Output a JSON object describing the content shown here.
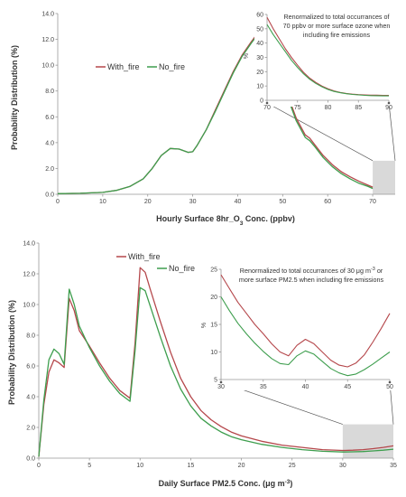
{
  "colors": {
    "with_fire": "#b5474b",
    "no_fire": "#3e9e4e",
    "shade": "#d9d9d9",
    "axis": "#999999"
  },
  "chart_data": [
    {
      "type": "line",
      "xlabel_main": "Hourly Surface 8hr_O",
      "xlabel_sub": "3",
      "xlabel_tail": " Conc. (ppbv)",
      "ylabel": "Probability Distribution (%)",
      "xlim": [
        0,
        75
      ],
      "ylim": [
        0,
        14
      ],
      "xticks": [
        "0",
        "10",
        "20",
        "30",
        "40",
        "50",
        "60",
        "70"
      ],
      "yticks": [
        "0.0",
        "2.0",
        "4.0",
        "6.0",
        "8.0",
        "10.0",
        "12.0",
        "14.0"
      ],
      "legend": [
        "With_fire",
        "No_fire"
      ],
      "shaded_region": [
        70,
        75
      ],
      "series": [
        {
          "name": "With_fire",
          "points": [
            [
              0,
              0.05
            ],
            [
              5,
              0.08
            ],
            [
              10,
              0.15
            ],
            [
              13,
              0.3
            ],
            [
              16,
              0.6
            ],
            [
              19,
              1.2
            ],
            [
              21,
              2.0
            ],
            [
              23,
              3.0
            ],
            [
              25,
              3.55
            ],
            [
              27,
              3.5
            ],
            [
              29,
              3.25
            ],
            [
              30,
              3.3
            ],
            [
              31,
              3.8
            ],
            [
              33,
              5.0
            ],
            [
              35,
              6.5
            ],
            [
              37,
              8.0
            ],
            [
              39,
              9.5
            ],
            [
              41,
              10.8
            ],
            [
              43,
              11.8
            ],
            [
              44.5,
              12.5
            ],
            [
              45.5,
              12.75
            ],
            [
              46.5,
              12.55
            ],
            [
              47.5,
              11.9
            ],
            [
              49,
              10.2
            ],
            [
              51,
              7.8
            ],
            [
              53,
              5.9
            ],
            [
              55,
              4.6
            ],
            [
              56,
              4.35
            ],
            [
              57,
              3.9
            ],
            [
              59,
              3.0
            ],
            [
              61,
              2.3
            ],
            [
              63,
              1.75
            ],
            [
              65,
              1.35
            ],
            [
              67,
              1.0
            ],
            [
              69,
              0.7
            ],
            [
              70,
              0.55
            ]
          ]
        },
        {
          "name": "No_fire",
          "points": [
            [
              0,
              0.05
            ],
            [
              5,
              0.08
            ],
            [
              10,
              0.15
            ],
            [
              13,
              0.3
            ],
            [
              16,
              0.6
            ],
            [
              19,
              1.2
            ],
            [
              21,
              2.0
            ],
            [
              23,
              3.0
            ],
            [
              25,
              3.55
            ],
            [
              27,
              3.5
            ],
            [
              29,
              3.25
            ],
            [
              30,
              3.3
            ],
            [
              31,
              3.8
            ],
            [
              33,
              5.0
            ],
            [
              35,
              6.4
            ],
            [
              37,
              7.9
            ],
            [
              39,
              9.4
            ],
            [
              41,
              10.7
            ],
            [
              43,
              11.7
            ],
            [
              44.5,
              12.4
            ],
            [
              45.5,
              12.65
            ],
            [
              46.5,
              12.4
            ],
            [
              47.5,
              11.75
            ],
            [
              49,
              10.0
            ],
            [
              51,
              7.6
            ],
            [
              53,
              5.7
            ],
            [
              55,
              4.4
            ],
            [
              56,
              4.15
            ],
            [
              57,
              3.75
            ],
            [
              59,
              2.85
            ],
            [
              61,
              2.15
            ],
            [
              63,
              1.6
            ],
            [
              65,
              1.2
            ],
            [
              67,
              0.85
            ],
            [
              69,
              0.6
            ],
            [
              70,
              0.45
            ]
          ]
        }
      ],
      "inset": {
        "note_lines": [
          "Renormalized to total occurrances of",
          "70 ppbv or more surface ozone when",
          "including fire emissions"
        ],
        "xlim": [
          70,
          90
        ],
        "ylim": [
          0,
          60
        ],
        "xticks": [
          "70",
          "75",
          "80",
          "85",
          "90"
        ],
        "yticks": [
          "0",
          "10",
          "20",
          "30",
          "40",
          "50",
          "60"
        ],
        "ylabel": "%",
        "series": [
          {
            "name": "With_fire",
            "points": [
              [
                70,
                58
              ],
              [
                71,
                50
              ],
              [
                72,
                43
              ],
              [
                73,
                36
              ],
              [
                74,
                30
              ],
              [
                75,
                24.5
              ],
              [
                76,
                19.5
              ],
              [
                77,
                15.5
              ],
              [
                78,
                12.5
              ],
              [
                79,
                10
              ],
              [
                80,
                8
              ],
              [
                81,
                6.5
              ],
              [
                82,
                5.5
              ],
              [
                83,
                4.8
              ],
              [
                84,
                4.3
              ],
              [
                85,
                4
              ],
              [
                86,
                3.8
              ],
              [
                87,
                3.6
              ],
              [
                88,
                3.6
              ],
              [
                89,
                3.5
              ],
              [
                90,
                3.5
              ]
            ]
          },
          {
            "name": "No_fire",
            "points": [
              [
                70,
                53
              ],
              [
                71,
                46
              ],
              [
                72,
                40
              ],
              [
                73,
                34
              ],
              [
                74,
                28
              ],
              [
                75,
                23
              ],
              [
                76,
                18.5
              ],
              [
                77,
                14.7
              ],
              [
                78,
                11.8
              ],
              [
                79,
                9.5
              ],
              [
                80,
                7.6
              ],
              [
                81,
                6.2
              ],
              [
                82,
                5.3
              ],
              [
                83,
                4.6
              ],
              [
                84,
                4.1
              ],
              [
                85,
                3.8
              ],
              [
                86,
                3.5
              ],
              [
                87,
                3.3
              ],
              [
                88,
                3.2
              ],
              [
                89,
                3.1
              ],
              [
                90,
                3.1
              ]
            ]
          }
        ]
      }
    },
    {
      "type": "line",
      "xlabel_main": "Daily Surface PM2.5 Conc. (μg m",
      "xlabel_sup": "-3",
      "xlabel_tail": ")",
      "ylabel": "Probability Distribution (%)",
      "xlim": [
        0,
        35
      ],
      "ylim": [
        0,
        14
      ],
      "xticks": [
        "0",
        "5",
        "10",
        "15",
        "20",
        "25",
        "30",
        "35"
      ],
      "yticks": [
        "0.0",
        "2.0",
        "4.0",
        "6.0",
        "8.0",
        "10.0",
        "12.0",
        "14.0"
      ],
      "legend": [
        "With_fire",
        "No_fire"
      ],
      "shaded_region": [
        30,
        35
      ],
      "series": [
        {
          "name": "With_fire",
          "points": [
            [
              0,
              0.1
            ],
            [
              0.5,
              3.5
            ],
            [
              1,
              5.6
            ],
            [
              1.5,
              6.4
            ],
            [
              2,
              6.2
            ],
            [
              2.5,
              5.9
            ],
            [
              3,
              10.4
            ],
            [
              3.5,
              9.6
            ],
            [
              4,
              8.3
            ],
            [
              5,
              7.3
            ],
            [
              6,
              6.2
            ],
            [
              7,
              5.2
            ],
            [
              8,
              4.4
            ],
            [
              9,
              3.9
            ],
            [
              9.5,
              7.5
            ],
            [
              10,
              12.4
            ],
            [
              10.5,
              12.1
            ],
            [
              11,
              11.0
            ],
            [
              12,
              8.9
            ],
            [
              13,
              6.9
            ],
            [
              14,
              5.2
            ],
            [
              15,
              4.0
            ],
            [
              16,
              3.1
            ],
            [
              17,
              2.5
            ],
            [
              18,
              2.05
            ],
            [
              19,
              1.7
            ],
            [
              20,
              1.45
            ],
            [
              22,
              1.1
            ],
            [
              24,
              0.85
            ],
            [
              26,
              0.7
            ],
            [
              28,
              0.55
            ],
            [
              30,
              0.5
            ],
            [
              31,
              0.52
            ],
            [
              32,
              0.55
            ],
            [
              33,
              0.62
            ],
            [
              34,
              0.7
            ],
            [
              35,
              0.8
            ]
          ]
        },
        {
          "name": "No_fire",
          "points": [
            [
              0,
              0.1
            ],
            [
              0.5,
              3.8
            ],
            [
              1,
              6.4
            ],
            [
              1.5,
              7.1
            ],
            [
              2,
              6.8
            ],
            [
              2.5,
              6.1
            ],
            [
              3,
              11.0
            ],
            [
              3.5,
              10.0
            ],
            [
              4,
              8.6
            ],
            [
              5,
              7.2
            ],
            [
              6,
              6.0
            ],
            [
              7,
              5.0
            ],
            [
              8,
              4.2
            ],
            [
              9,
              3.7
            ],
            [
              9.5,
              7.0
            ],
            [
              10,
              11.1
            ],
            [
              10.5,
              10.9
            ],
            [
              11,
              9.9
            ],
            [
              12,
              7.9
            ],
            [
              13,
              6.0
            ],
            [
              14,
              4.5
            ],
            [
              15,
              3.4
            ],
            [
              16,
              2.6
            ],
            [
              17,
              2.1
            ],
            [
              18,
              1.7
            ],
            [
              19,
              1.4
            ],
            [
              20,
              1.2
            ],
            [
              22,
              0.9
            ],
            [
              24,
              0.7
            ],
            [
              26,
              0.55
            ],
            [
              28,
              0.45
            ],
            [
              30,
              0.4
            ],
            [
              31,
              0.41
            ],
            [
              32,
              0.43
            ],
            [
              33,
              0.47
            ],
            [
              34,
              0.52
            ],
            [
              35,
              0.58
            ]
          ]
        }
      ],
      "inset": {
        "note_line1_pre": "Renormalized to total occurrances of 30 μg m",
        "note_line1_sup": "-3",
        "note_line1_post": " or",
        "note_line2": "more surface PM2.5 when including fire emissions",
        "xlim": [
          30,
          50
        ],
        "ylim": [
          5,
          25
        ],
        "xticks": [
          "30",
          "35",
          "40",
          "45",
          "50"
        ],
        "yticks": [
          "5",
          "10",
          "15",
          "20",
          "25"
        ],
        "ylabel": "%",
        "series": [
          {
            "name": "With_fire",
            "points": [
              [
                30,
                24
              ],
              [
                31,
                21.5
              ],
              [
                32,
                19
              ],
              [
                33,
                17
              ],
              [
                34,
                15
              ],
              [
                35,
                13.3
              ],
              [
                36,
                11.5
              ],
              [
                37,
                10
              ],
              [
                38,
                9.3
              ],
              [
                39,
                11.2
              ],
              [
                40,
                12.3
              ],
              [
                41,
                11.5
              ],
              [
                42,
                10
              ],
              [
                43,
                8.5
              ],
              [
                44,
                7.6
              ],
              [
                45,
                7.3
              ],
              [
                46,
                8
              ],
              [
                47,
                9.5
              ],
              [
                48,
                11.8
              ],
              [
                49,
                14.3
              ],
              [
                50,
                17
              ]
            ]
          },
          {
            "name": "No_fire",
            "points": [
              [
                30,
                20
              ],
              [
                31,
                17.5
              ],
              [
                32,
                15.2
              ],
              [
                33,
                13.3
              ],
              [
                34,
                11.6
              ],
              [
                35,
                10.1
              ],
              [
                36,
                8.8
              ],
              [
                37,
                7.9
              ],
              [
                38,
                7.7
              ],
              [
                39,
                9.3
              ],
              [
                40,
                10.2
              ],
              [
                41,
                9.6
              ],
              [
                42,
                8.3
              ],
              [
                43,
                7
              ],
              [
                44,
                6.2
              ],
              [
                45,
                5.7
              ],
              [
                46,
                6
              ],
              [
                47,
                6.8
              ],
              [
                48,
                7.8
              ],
              [
                49,
                8.9
              ],
              [
                50,
                10
              ]
            ]
          }
        ]
      }
    }
  ]
}
